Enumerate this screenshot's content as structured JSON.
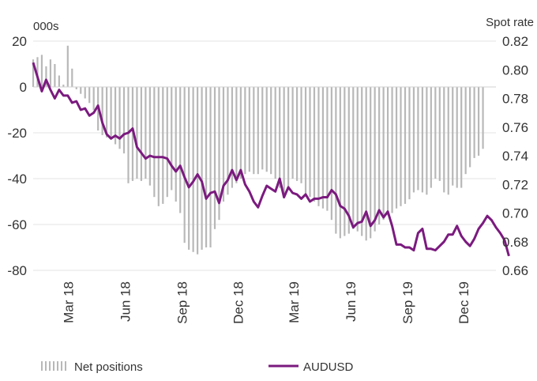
{
  "chart_data": {
    "type": "bar+line",
    "left_axis_unit": "000s",
    "right_axis_unit": "Spot rate",
    "left_axis": {
      "ylim": [
        -80,
        20
      ],
      "ticks": [
        "20",
        "0",
        "-20",
        "-40",
        "-60",
        "-80"
      ]
    },
    "right_axis": {
      "ylim": [
        0.66,
        0.82
      ],
      "ticks": [
        "0.82",
        "0.80",
        "0.78",
        "0.76",
        "0.74",
        "0.72",
        "0.70",
        "0.68",
        "0.66"
      ]
    },
    "x_axis": {
      "range": [
        "2018-01-02",
        "2020-01-21"
      ],
      "ticks": [
        {
          "label": "Mar 18",
          "date": "2018-03-01"
        },
        {
          "label": "Jun 18",
          "date": "2018-06-01"
        },
        {
          "label": "Sep 18",
          "date": "2018-09-01"
        },
        {
          "label": "Dec 18",
          "date": "2018-12-01"
        },
        {
          "label": "Mar 19",
          "date": "2019-03-01"
        },
        {
          "label": "Jun 19",
          "date": "2019-06-01"
        },
        {
          "label": "Sep 19",
          "date": "2019-09-01"
        },
        {
          "label": "Dec 19",
          "date": "2019-12-01"
        }
      ]
    },
    "grid": true,
    "legend_position": "bottom",
    "series": [
      {
        "name": "Net positions",
        "type": "bar",
        "axis": "left",
        "color": "#b8b8b8",
        "start_date": "2018-01-02",
        "step_days": 7,
        "values": [
          12,
          13,
          14,
          9,
          12,
          10,
          5,
          1,
          18,
          8,
          -1,
          -3,
          -5,
          -7,
          -10,
          -19,
          -21,
          -22,
          -23,
          -25,
          -27,
          -29,
          -42,
          -41,
          -40,
          -41,
          -40,
          -43,
          -48,
          -52,
          -51,
          -48,
          -45,
          -50,
          -55,
          -68,
          -71,
          -72,
          -73,
          -71,
          -70,
          -70,
          -62,
          -58,
          -50,
          -47,
          -44,
          -42,
          -40,
          -38,
          -37,
          -38,
          -38,
          -36,
          -37,
          -38,
          -40,
          -44,
          -48,
          -45,
          -40,
          -41,
          -42,
          -47,
          -48,
          -50,
          -52,
          -53,
          -54,
          -58,
          -64,
          -66,
          -65,
          -64,
          -62,
          -63,
          -65,
          -67,
          -66,
          -63,
          -60,
          -58,
          -56,
          -55,
          -53,
          -52,
          -51,
          -49,
          -46,
          -45,
          -46,
          -47,
          -44,
          -40,
          -41,
          -46,
          -47,
          -43,
          -44,
          -44,
          -38,
          -35,
          -31,
          -30,
          -27
        ]
      },
      {
        "name": "AUDUSD",
        "type": "line",
        "axis": "right",
        "color": "#7b1a7f",
        "points": [
          [
            "2018-01-02",
            0.805
          ],
          [
            "2018-01-09",
            0.795
          ],
          [
            "2018-01-16",
            0.785
          ],
          [
            "2018-01-23",
            0.793
          ],
          [
            "2018-01-30",
            0.786
          ],
          [
            "2018-02-06",
            0.78
          ],
          [
            "2018-02-13",
            0.786
          ],
          [
            "2018-02-20",
            0.782
          ],
          [
            "2018-02-27",
            0.782
          ],
          [
            "2018-03-06",
            0.777
          ],
          [
            "2018-03-13",
            0.778
          ],
          [
            "2018-03-20",
            0.772
          ],
          [
            "2018-03-27",
            0.773
          ],
          [
            "2018-04-03",
            0.768
          ],
          [
            "2018-04-10",
            0.77
          ],
          [
            "2018-04-17",
            0.775
          ],
          [
            "2018-04-24",
            0.763
          ],
          [
            "2018-05-01",
            0.755
          ],
          [
            "2018-05-08",
            0.752
          ],
          [
            "2018-05-15",
            0.754
          ],
          [
            "2018-05-22",
            0.752
          ],
          [
            "2018-05-29",
            0.755
          ],
          [
            "2018-06-05",
            0.756
          ],
          [
            "2018-06-12",
            0.759
          ],
          [
            "2018-06-19",
            0.746
          ],
          [
            "2018-06-26",
            0.742
          ],
          [
            "2018-07-03",
            0.738
          ],
          [
            "2018-07-10",
            0.74
          ],
          [
            "2018-07-17",
            0.739
          ],
          [
            "2018-07-24",
            0.739
          ],
          [
            "2018-07-31",
            0.739
          ],
          [
            "2018-08-07",
            0.738
          ],
          [
            "2018-08-14",
            0.733
          ],
          [
            "2018-08-21",
            0.729
          ],
          [
            "2018-08-28",
            0.733
          ],
          [
            "2018-09-04",
            0.725
          ],
          [
            "2018-09-11",
            0.718
          ],
          [
            "2018-09-18",
            0.722
          ],
          [
            "2018-09-25",
            0.727
          ],
          [
            "2018-10-02",
            0.722
          ],
          [
            "2018-10-09",
            0.71
          ],
          [
            "2018-10-16",
            0.714
          ],
          [
            "2018-10-23",
            0.715
          ],
          [
            "2018-10-30",
            0.707
          ],
          [
            "2018-11-06",
            0.719
          ],
          [
            "2018-11-13",
            0.723
          ],
          [
            "2018-11-20",
            0.73
          ],
          [
            "2018-11-27",
            0.723
          ],
          [
            "2018-12-04",
            0.73
          ],
          [
            "2018-12-11",
            0.72
          ],
          [
            "2018-12-18",
            0.715
          ],
          [
            "2018-12-25",
            0.708
          ],
          [
            "2019-01-01",
            0.704
          ],
          [
            "2019-01-08",
            0.712
          ],
          [
            "2019-01-15",
            0.719
          ],
          [
            "2019-01-22",
            0.717
          ],
          [
            "2019-01-29",
            0.715
          ],
          [
            "2019-02-05",
            0.724
          ],
          [
            "2019-02-12",
            0.711
          ],
          [
            "2019-02-19",
            0.718
          ],
          [
            "2019-02-26",
            0.714
          ],
          [
            "2019-03-05",
            0.713
          ],
          [
            "2019-03-12",
            0.71
          ],
          [
            "2019-03-19",
            0.713
          ],
          [
            "2019-03-26",
            0.708
          ],
          [
            "2019-04-02",
            0.71
          ],
          [
            "2019-04-09",
            0.71
          ],
          [
            "2019-04-16",
            0.711
          ],
          [
            "2019-04-23",
            0.711
          ],
          [
            "2019-04-30",
            0.716
          ],
          [
            "2019-05-07",
            0.713
          ],
          [
            "2019-05-14",
            0.705
          ],
          [
            "2019-05-21",
            0.703
          ],
          [
            "2019-05-28",
            0.698
          ],
          [
            "2019-06-04",
            0.69
          ],
          [
            "2019-06-11",
            0.693
          ],
          [
            "2019-06-18",
            0.694
          ],
          [
            "2019-06-25",
            0.701
          ],
          [
            "2019-07-02",
            0.691
          ],
          [
            "2019-07-09",
            0.695
          ],
          [
            "2019-07-16",
            0.702
          ],
          [
            "2019-07-23",
            0.697
          ],
          [
            "2019-07-30",
            0.701
          ],
          [
            "2019-08-06",
            0.691
          ],
          [
            "2019-08-13",
            0.678
          ],
          [
            "2019-08-20",
            0.678
          ],
          [
            "2019-08-27",
            0.676
          ],
          [
            "2019-09-03",
            0.676
          ],
          [
            "2019-09-10",
            0.674
          ],
          [
            "2019-09-17",
            0.686
          ],
          [
            "2019-09-24",
            0.689
          ],
          [
            "2019-10-01",
            0.675
          ],
          [
            "2019-10-08",
            0.675
          ],
          [
            "2019-10-15",
            0.674
          ],
          [
            "2019-10-22",
            0.677
          ],
          [
            "2019-10-29",
            0.68
          ],
          [
            "2019-11-05",
            0.685
          ],
          [
            "2019-11-12",
            0.685
          ],
          [
            "2019-11-19",
            0.691
          ],
          [
            "2019-11-26",
            0.684
          ],
          [
            "2019-12-03",
            0.68
          ],
          [
            "2019-12-10",
            0.677
          ],
          [
            "2019-12-17",
            0.682
          ],
          [
            "2019-12-24",
            0.689
          ],
          [
            "2019-12-31",
            0.693
          ],
          [
            "2020-01-07",
            0.698
          ],
          [
            "2020-01-14",
            0.695
          ],
          [
            "2020-01-21",
            0.69
          ],
          [
            "2020-01-28",
            0.686
          ],
          [
            "2020-02-04",
            0.681
          ],
          [
            "2020-02-11",
            0.67
          ]
        ]
      }
    ]
  }
}
